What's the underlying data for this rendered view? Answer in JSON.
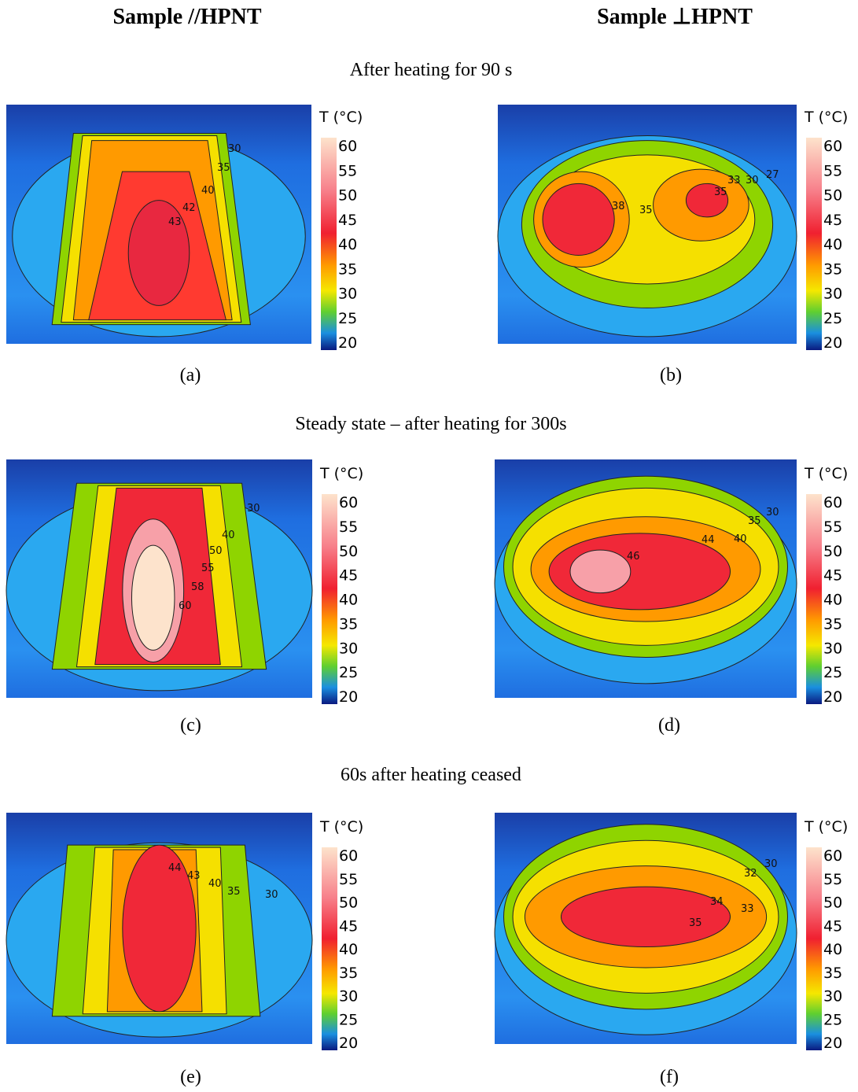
{
  "columns": [
    {
      "title": "Sample //HPNT"
    },
    {
      "title": "Sample ⊥HPNT"
    }
  ],
  "colorbar": {
    "title": "T (°C)",
    "ticks": [
      60,
      55,
      50,
      45,
      40,
      35,
      30,
      25,
      20
    ]
  },
  "rows": [
    {
      "title": "After heating for 90 s",
      "panels": [
        {
          "label": "(a)",
          "contour_labels": [
            30,
            35,
            40,
            42,
            43
          ]
        },
        {
          "label": "(b)",
          "contour_labels": [
            38,
            35,
            33,
            30,
            27,
            35
          ]
        }
      ]
    },
    {
      "title": "Steady state – after heating for 300s",
      "panels": [
        {
          "label": "(c)",
          "contour_labels": [
            30,
            40,
            50,
            55,
            58,
            60
          ]
        },
        {
          "label": "(d)",
          "contour_labels": [
            35,
            30,
            46,
            44,
            40
          ]
        }
      ]
    },
    {
      "title": "60s after heating ceased",
      "panels": [
        {
          "label": "(e)",
          "contour_labels": [
            44,
            43,
            40,
            35,
            30
          ]
        },
        {
          "label": "(f)",
          "contour_labels": [
            32,
            30,
            34,
            33,
            35
          ]
        }
      ]
    }
  ]
}
